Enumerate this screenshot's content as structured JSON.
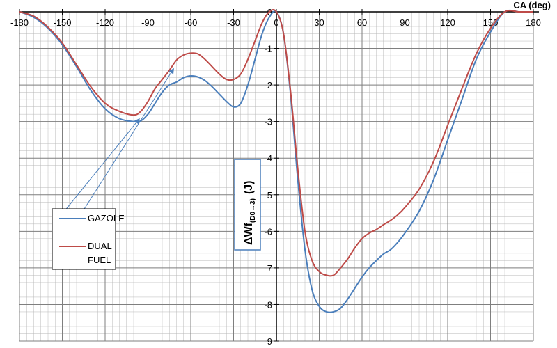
{
  "chart_data": {
    "type": "line",
    "xlabel": "CA (deg)",
    "ylabel": {
      "prefix": "ΔWf",
      "subscript": "(D0→3)",
      "unit": "(J)"
    },
    "xlim": [
      -180,
      180
    ],
    "ylim": [
      -9,
      0
    ],
    "x_ticks": [
      -180,
      -150,
      -120,
      -90,
      -60,
      -30,
      0,
      30,
      60,
      90,
      120,
      150,
      180
    ],
    "x_tick_labels": [
      "-180",
      "-150",
      "-120",
      "-90",
      "-60",
      "-30",
      "0",
      "30",
      "60",
      "90",
      "120",
      "150",
      "180"
    ],
    "y_ticks": [
      0,
      -1,
      -2,
      -3,
      -4,
      -5,
      -6,
      -7,
      -8,
      -9
    ],
    "y_tick_labels": [
      "0",
      "-1",
      "-2",
      "-3",
      "-4",
      "-5",
      "-6",
      "-7",
      "-8",
      "-9"
    ],
    "grid": true,
    "legend_position": "bottom-left",
    "series": [
      {
        "name": "GAZOLE",
        "color": "#4a7ebb",
        "x": [
          -180,
          -170,
          -160,
          -150,
          -140,
          -130,
          -120,
          -110,
          -100,
          -95,
          -90,
          -85,
          -80,
          -75,
          -70,
          -65,
          -60,
          -55,
          -50,
          -45,
          -40,
          -35,
          -30,
          -25,
          -20,
          -15,
          -10,
          -5,
          0,
          5,
          10,
          15,
          20,
          25,
          30,
          35,
          40,
          45,
          50,
          55,
          60,
          65,
          70,
          75,
          80,
          85,
          90,
          100,
          110,
          120,
          130,
          140,
          150,
          160,
          170,
          175,
          180
        ],
        "y": [
          0,
          -0.15,
          -0.45,
          -0.9,
          -1.5,
          -2.15,
          -2.65,
          -2.92,
          -3.0,
          -2.98,
          -2.8,
          -2.5,
          -2.2,
          -2.0,
          -1.92,
          -1.8,
          -1.75,
          -1.78,
          -1.88,
          -2.05,
          -2.25,
          -2.45,
          -2.6,
          -2.5,
          -2.0,
          -1.3,
          -0.6,
          -0.15,
          0,
          -0.6,
          -2.3,
          -4.6,
          -6.5,
          -7.6,
          -8.05,
          -8.2,
          -8.2,
          -8.1,
          -7.85,
          -7.55,
          -7.25,
          -7.0,
          -6.8,
          -6.62,
          -6.5,
          -6.3,
          -6.05,
          -5.45,
          -4.6,
          -3.5,
          -2.4,
          -1.3,
          -0.55,
          0,
          0,
          0,
          0
        ]
      },
      {
        "name": "DUAL FUEL",
        "color": "#be4b48",
        "x": [
          -180,
          -170,
          -160,
          -150,
          -140,
          -130,
          -120,
          -110,
          -100,
          -95,
          -90,
          -85,
          -80,
          -75,
          -70,
          -65,
          -60,
          -55,
          -50,
          -45,
          -40,
          -35,
          -30,
          -25,
          -20,
          -15,
          -10,
          -5,
          0,
          5,
          10,
          15,
          20,
          25,
          30,
          35,
          40,
          45,
          50,
          55,
          60,
          65,
          70,
          75,
          80,
          85,
          90,
          100,
          110,
          120,
          130,
          140,
          150,
          160,
          170,
          175,
          180
        ],
        "y": [
          0,
          -0.12,
          -0.42,
          -0.85,
          -1.45,
          -2.05,
          -2.5,
          -2.72,
          -2.82,
          -2.72,
          -2.45,
          -2.1,
          -1.85,
          -1.6,
          -1.32,
          -1.18,
          -1.13,
          -1.15,
          -1.3,
          -1.5,
          -1.7,
          -1.85,
          -1.85,
          -1.7,
          -1.3,
          -0.8,
          -0.3,
          0,
          0,
          -0.6,
          -2.2,
          -4.3,
          -6.0,
          -6.8,
          -7.1,
          -7.2,
          -7.2,
          -7.0,
          -6.75,
          -6.45,
          -6.2,
          -6.05,
          -5.95,
          -5.82,
          -5.7,
          -5.55,
          -5.35,
          -4.85,
          -4.1,
          -3.1,
          -2.1,
          -1.15,
          -0.45,
          0,
          0,
          0,
          0
        ]
      }
    ],
    "legend": {
      "items": [
        "GAZOLE",
        "DUAL",
        "FUEL"
      ]
    }
  }
}
